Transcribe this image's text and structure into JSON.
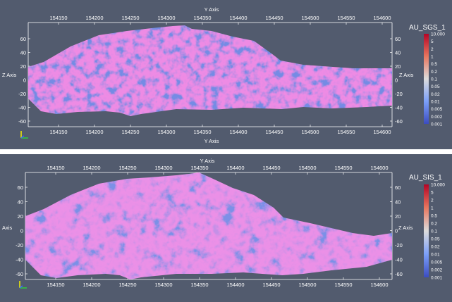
{
  "panels": [
    {
      "id": "top",
      "scalar_name": "AU_SGS_1",
      "colorbar_labels": [
        "10.000",
        "5",
        "2",
        "1",
        "0.5",
        "0.2",
        "0.1",
        "0.05",
        "0.02",
        "0.01",
        "0.005",
        "0.002",
        "0.001"
      ],
      "y_axis_title": "Y Axis",
      "y_ticks": [
        "154150",
        "154200",
        "154250",
        "154300",
        "154350",
        "154400",
        "154450",
        "154500",
        "154550",
        "154600"
      ],
      "z_axis_title": "Z Axis",
      "z_ticks": [
        "60",
        "40",
        "20",
        "0",
        "-20",
        "-40",
        "-60"
      ]
    },
    {
      "id": "bottom",
      "scalar_name": "AU_SIS_1",
      "colorbar_labels": [
        "10.000",
        "5",
        "2",
        "1",
        "0.5",
        "0.2",
        "0.1",
        "0.05",
        "0.02",
        "0.01",
        "0.005",
        "0.002",
        "0.001"
      ],
      "y_axis_title": "Y Axis",
      "y_ticks": [
        "154150",
        "154200",
        "154250",
        "154300",
        "154350",
        "154400",
        "154450",
        "154500",
        "154550",
        "154600"
      ],
      "z_axis_title": "Z Axis",
      "left_axis_title": "Axis",
      "z_ticks": [
        "60",
        "40",
        "20",
        "0",
        "-20",
        "-40",
        "-60"
      ]
    }
  ],
  "colors": {
    "background": "#525b6e",
    "high": "#b2182b",
    "mid": "#dcdcdc",
    "low": "#2c3cc8"
  }
}
